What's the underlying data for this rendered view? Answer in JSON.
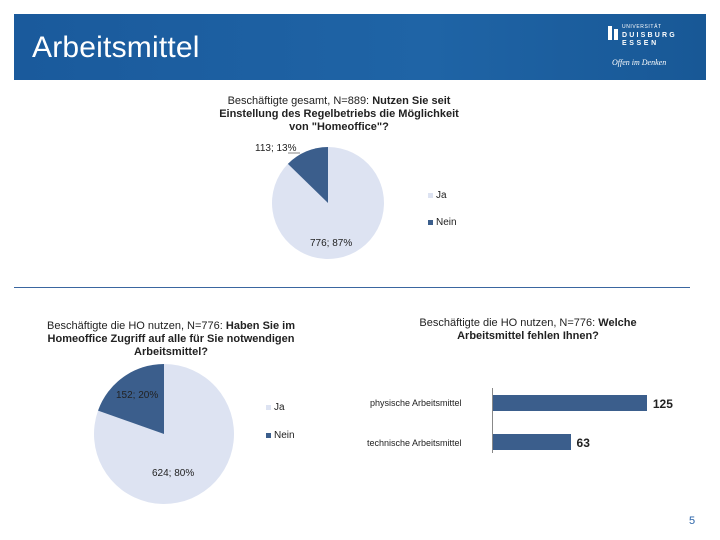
{
  "header": {
    "title": "Arbeitsmittel"
  },
  "logo": {
    "top": "UNIVERSITÄT",
    "line1": "DUISBURG",
    "line2": "ESSEN",
    "slogan": "Offen im Denken"
  },
  "colors": {
    "ja": "#dde3f2",
    "nein": "#3b5e8c",
    "header": "#1a5a9c",
    "accent": "#2a63a8"
  },
  "legend": {
    "ja": "Ja",
    "nein": "Nein"
  },
  "chart1": {
    "title_prefix": "Beschäftigte gesamt, N=889: ",
    "title_bold": "Nutzen Sie seit Einstellung des Regelbetriebs die Möglichkeit von \"Homeoffice\"?",
    "label_nein": "113; 13%",
    "label_ja": "776; 87%"
  },
  "chart2": {
    "title_prefix": "Beschäftigte die HO nutzen, N=776: ",
    "title_bold": "Haben Sie im Homeoffice Zugriff auf alle für Sie notwendigen Arbeitsmittel?",
    "label_nein": "152; 20%",
    "label_ja": "624; 80%"
  },
  "chart3": {
    "title_prefix": "Beschäftigte die HO nutzen, N=776: ",
    "title_bold": "Welche Arbeitsmittel fehlen Ihnen?",
    "label_bar1": "125",
    "label_bar2": "63"
  },
  "chart_data": [
    {
      "type": "pie",
      "title": "Beschäftigte gesamt, N=889: Nutzen Sie seit Einstellung des Regelbetriebs die Möglichkeit von \"Homeoffice\"?",
      "categories": [
        "Ja",
        "Nein"
      ],
      "values": [
        776,
        113
      ],
      "percent": [
        87,
        13
      ],
      "legend": "right"
    },
    {
      "type": "pie",
      "title": "Beschäftigte die HO nutzen, N=776: Haben Sie im Homeoffice Zugriff auf alle für Sie notwendigen Arbeitsmittel?",
      "categories": [
        "Ja",
        "Nein"
      ],
      "values": [
        624,
        152
      ],
      "percent": [
        80,
        20
      ],
      "legend": "right"
    },
    {
      "type": "bar",
      "orientation": "horizontal",
      "title": "Beschäftigte die HO nutzen, N=776: Welche Arbeitsmittel fehlen Ihnen?",
      "categories": [
        "physische Arbeitsmittel",
        "technische Arbeitsmittel"
      ],
      "values": [
        125,
        63
      ],
      "xlim": [
        0,
        130
      ]
    }
  ],
  "page_number": "5"
}
